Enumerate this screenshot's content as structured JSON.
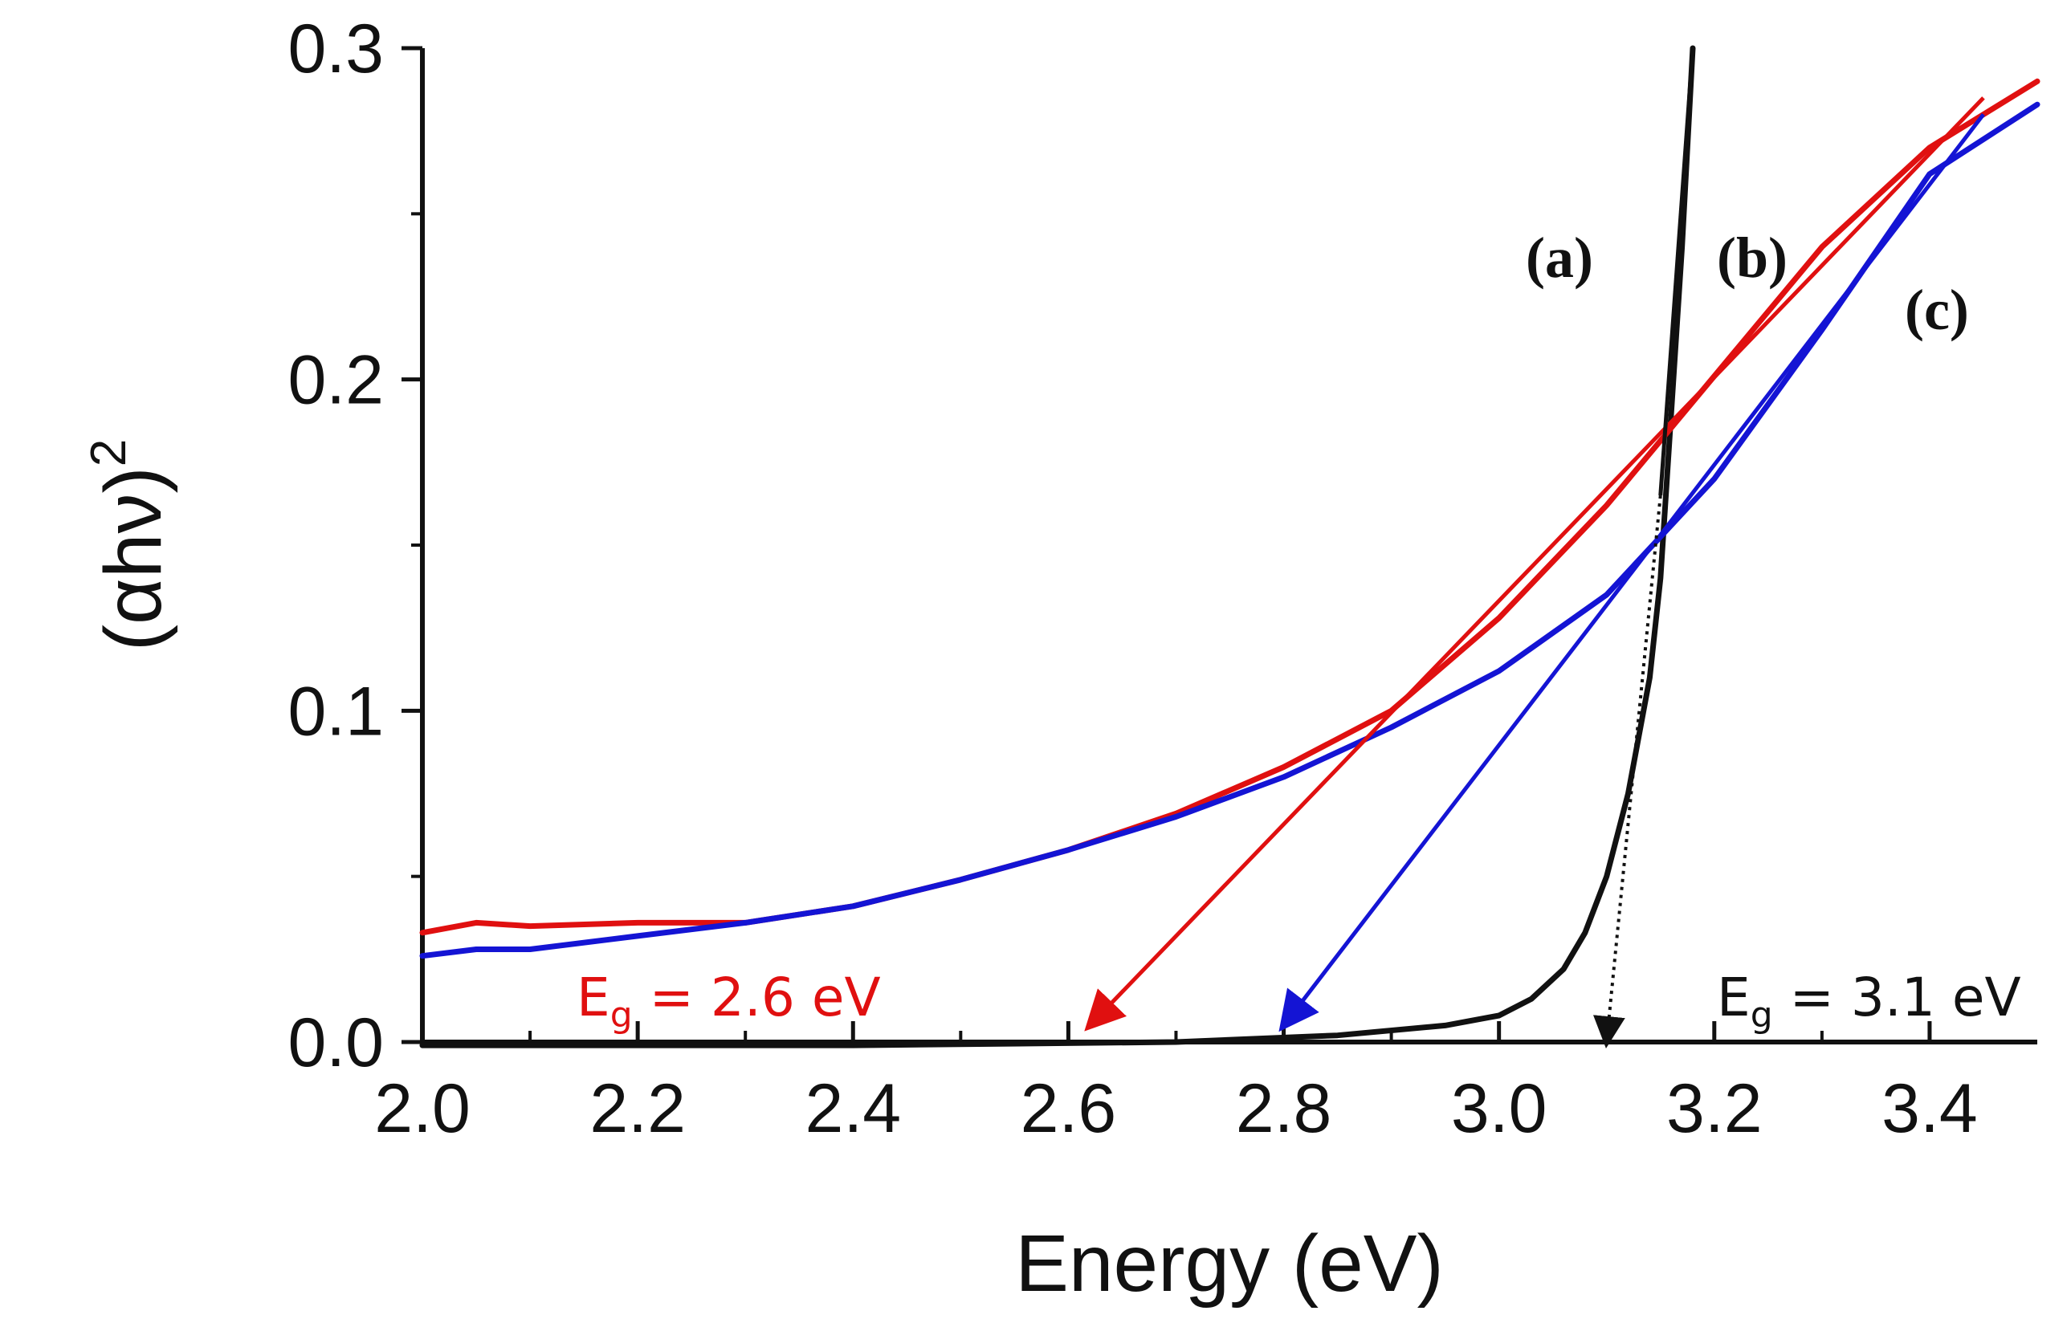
{
  "chart_data": {
    "type": "line",
    "title": "",
    "xlabel": "Energy (eV)",
    "ylabel": "(αhν)",
    "ylabel_superscript": "2",
    "xlim": [
      2.0,
      3.5
    ],
    "ylim": [
      0.0,
      0.3
    ],
    "xticks": [
      2.0,
      2.2,
      2.4,
      2.6,
      2.8,
      3.0,
      3.2,
      3.4
    ],
    "xtick_labels": [
      "2.0",
      "2.2",
      "2.4",
      "2.6",
      "2.8",
      "3.0",
      "3.2",
      "3.4"
    ],
    "yticks": [
      0.0,
      0.1,
      0.2,
      0.3
    ],
    "ytick_labels": [
      "0.0",
      "0.1",
      "0.2",
      "0.3"
    ],
    "colors": {
      "a": "#111111",
      "b": "#e01010",
      "c": "#1414d4"
    },
    "series": [
      {
        "name": "(a)",
        "color": "#111111",
        "x": [
          2.0,
          2.4,
          2.7,
          2.85,
          2.95,
          3.0,
          3.03,
          3.06,
          3.08,
          3.1,
          3.12,
          3.14,
          3.15,
          3.16,
          3.17,
          3.18
        ],
        "y": [
          -0.001,
          -0.001,
          0.0,
          0.002,
          0.005,
          0.008,
          0.013,
          0.022,
          0.033,
          0.05,
          0.075,
          0.11,
          0.14,
          0.19,
          0.24,
          0.3
        ]
      },
      {
        "name": "(b)",
        "color": "#e01010",
        "x": [
          2.0,
          2.05,
          2.1,
          2.2,
          2.3,
          2.4,
          2.5,
          2.6,
          2.7,
          2.8,
          2.9,
          3.0,
          3.1,
          3.2,
          3.3,
          3.4,
          3.5
        ],
        "y": [
          0.033,
          0.036,
          0.035,
          0.036,
          0.036,
          0.041,
          0.049,
          0.058,
          0.069,
          0.083,
          0.1,
          0.128,
          0.162,
          0.201,
          0.24,
          0.27,
          0.29
        ]
      },
      {
        "name": "(c)",
        "color": "#1414d4",
        "x": [
          2.0,
          2.05,
          2.1,
          2.2,
          2.3,
          2.4,
          2.5,
          2.6,
          2.7,
          2.8,
          2.9,
          3.0,
          3.1,
          3.2,
          3.3,
          3.4,
          3.5
        ],
        "y": [
          0.026,
          0.028,
          0.028,
          0.032,
          0.036,
          0.041,
          0.049,
          0.058,
          0.068,
          0.08,
          0.095,
          0.112,
          0.135,
          0.17,
          0.215,
          0.262,
          0.283
        ]
      }
    ],
    "fit_lines": [
      {
        "series": "(b)",
        "x": [
          3.45,
          2.62
        ],
        "y": [
          0.285,
          0.005
        ]
      },
      {
        "series": "(c)",
        "x": [
          3.45,
          2.8
        ],
        "y": [
          0.28,
          0.005
        ]
      },
      {
        "series": "(a)",
        "x": [
          3.18,
          3.15
        ],
        "y": [
          0.3,
          0.165
        ]
      },
      {
        "series": "(a)",
        "style": "dotted",
        "x": [
          3.15,
          3.1
        ],
        "y": [
          0.165,
          0.0
        ]
      }
    ],
    "annotations": {
      "label_a": "(a)",
      "label_b": "(b)",
      "label_c": "(c)",
      "eg_red": {
        "main": "E",
        "sub": "g",
        "rest": " = 2.6 eV",
        "color": "#e01010"
      },
      "eg_black": {
        "main": "E",
        "sub": "g",
        "rest": " = 3.1 eV",
        "color": "#111111"
      }
    }
  }
}
